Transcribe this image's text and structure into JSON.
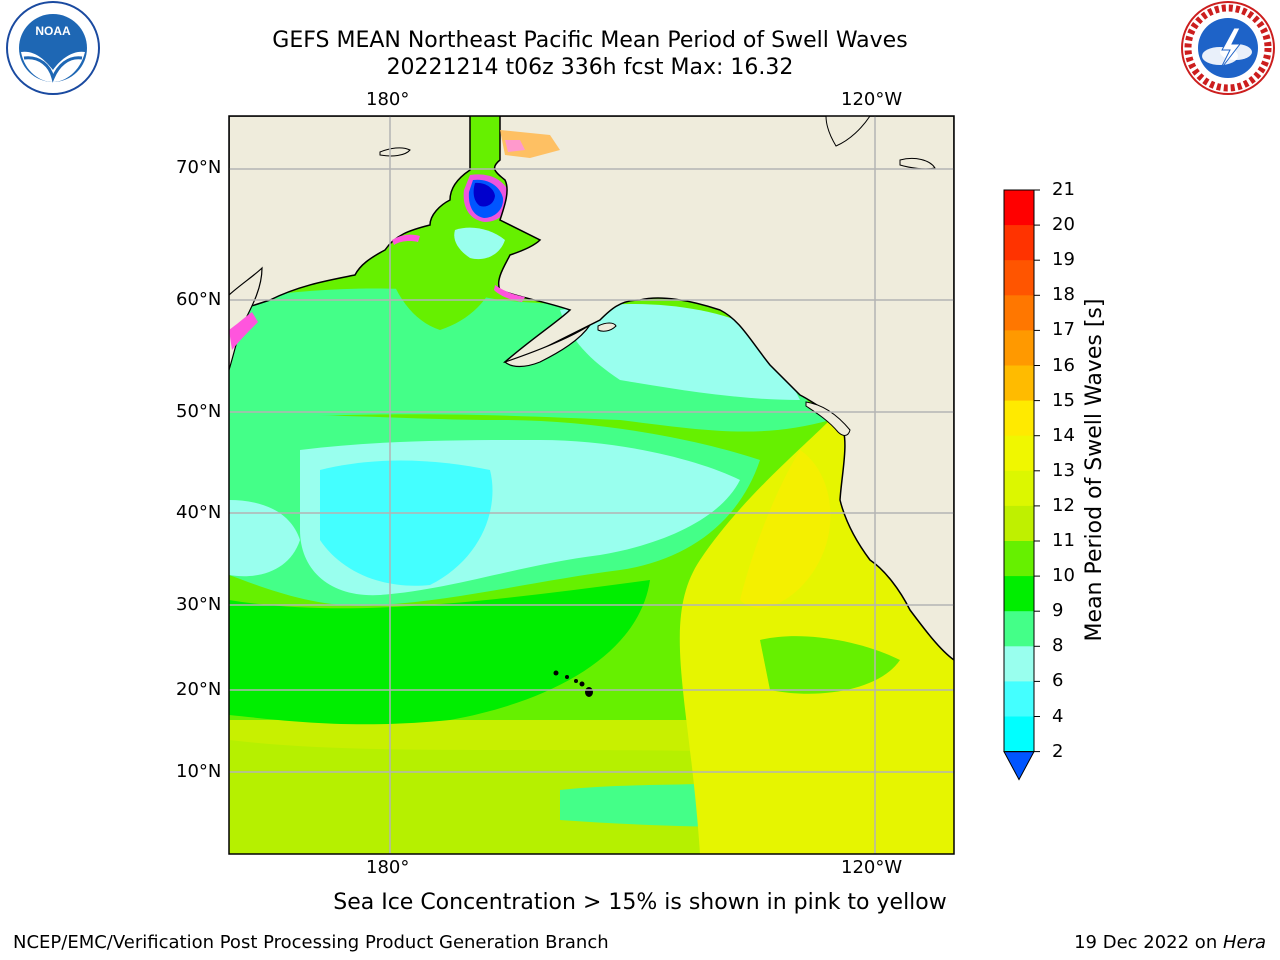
{
  "title": {
    "line1": "GEFS MEAN Northeast Pacific Mean Period of Swell Waves",
    "line2": "20221214 t06z 336h fcst   Max: 16.32"
  },
  "logos": {
    "left": {
      "name": "noara-logo",
      "text": "NOAA",
      "ring_text": "NATIONAL OCEANIC AND ATMOSPHERIC ADMINISTRATION · U.S. DEPARTMENT OF COMMERCE"
    },
    "right": {
      "name": "nws-logo",
      "ring_text": "NATIONAL WEATHER SERVICE"
    }
  },
  "map": {
    "lon_labels_top": [
      "180°",
      "120°W"
    ],
    "lon_labels_bottom": [
      "180°",
      "120°W"
    ],
    "lat_labels": [
      "70°N",
      "60°N",
      "50°N",
      "40°N",
      "30°N",
      "20°N",
      "10°N"
    ],
    "colors": {
      "land": "#efecdc",
      "gridline": "#b4b4b4",
      "coast": "#000000"
    }
  },
  "colorbar": {
    "title": "Mean Period of Swell Waves [s]",
    "ticks": [
      "21",
      "20",
      "19",
      "18",
      "17",
      "16",
      "15",
      "14",
      "13",
      "12",
      "11",
      "10",
      "9",
      "8",
      "6",
      "4",
      "2"
    ],
    "colors": [
      "#ff0000",
      "#ff3300",
      "#ff5500",
      "#ff7700",
      "#ff9900",
      "#ffbb00",
      "#ffea00",
      "#f0f700",
      "#dcf700",
      "#bff000",
      "#66f000",
      "#00ee00",
      "#44ff88",
      "#99ffee",
      "#44ffff",
      "#00ffff",
      "#00ddff",
      "#0055ff"
    ]
  },
  "caption": "Sea Ice Concentration > 15% is shown in pink to yellow",
  "footer": {
    "left": "NCEP/EMC/Verification Post Processing Product Generation Branch",
    "right_prefix": "19 Dec 2022 on ",
    "right_host": "Hera"
  }
}
